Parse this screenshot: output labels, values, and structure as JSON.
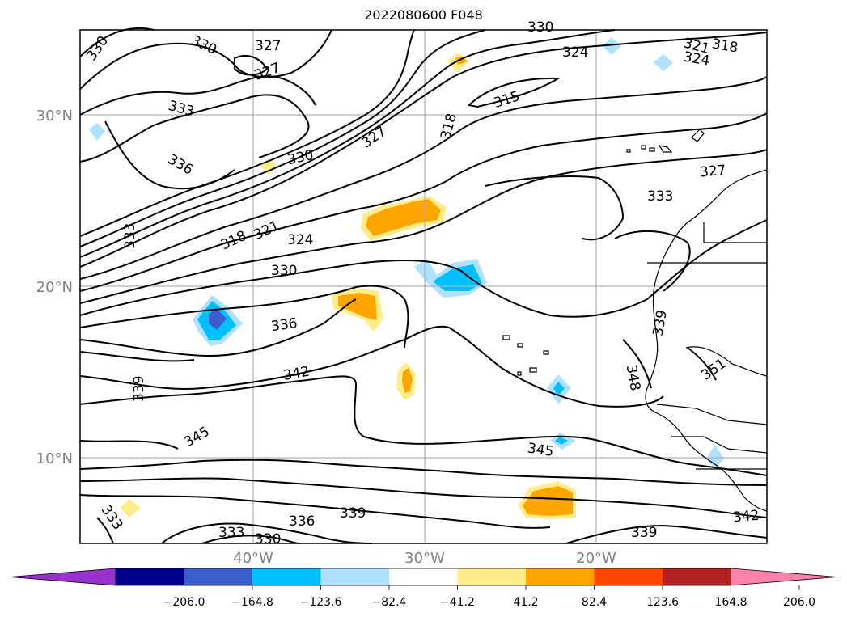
{
  "title": "2022080600 F048",
  "map": {
    "lat_labels": [
      "30°N",
      "20°N",
      "10°N"
    ],
    "lon_labels": [
      "40°W",
      "30°W",
      "20°W"
    ],
    "contour_labels": [
      "330",
      "330",
      "327",
      "327",
      "333",
      "336",
      "330",
      "327",
      "318",
      "324",
      "315",
      "321",
      "318",
      "324",
      "330",
      "324",
      "321",
      "318",
      "333",
      "327",
      "333",
      "330",
      "336",
      "342",
      "339",
      "339",
      "345",
      "345",
      "348",
      "351",
      "333",
      "336",
      "339",
      "333",
      "330",
      "339",
      "342"
    ]
  },
  "colorbar": {
    "ticks": [
      "−206.0",
      "−164.8",
      "−123.6",
      "−82.4",
      "−41.2",
      "41.2",
      "82.4",
      "123.6",
      "164.8",
      "206.0"
    ],
    "colors": [
      "#9932cc",
      "#00008b",
      "#3a5fcd",
      "#00bfff",
      "#b0e2ff",
      "#ffffff",
      "#ffec8b",
      "#ffa500",
      "#ff4500",
      "#b22222",
      "#ff82ab"
    ]
  }
}
